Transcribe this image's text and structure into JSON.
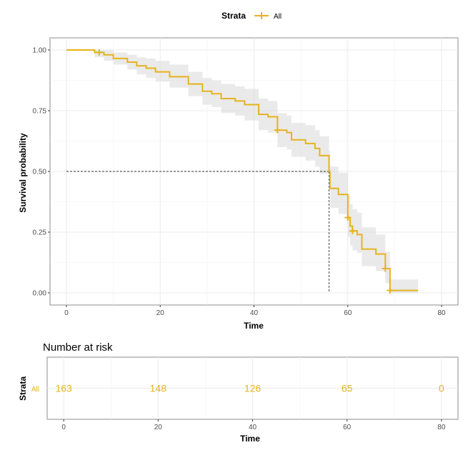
{
  "legend": {
    "title": "Strata",
    "label": "All",
    "placement": "top"
  },
  "colors": {
    "series": "#e6b31e",
    "ci_band": "#d9d9d9",
    "grid": "#ebebeb",
    "panel_border": "#8c8c8c",
    "median_line": "#333333"
  },
  "chart_data": [
    {
      "type": "line",
      "subtype": "kaplan-meier",
      "xlabel": "Time",
      "ylabel": "Survival probability",
      "xlim": [
        -3.5,
        83.5
      ],
      "ylim": [
        -0.05,
        1.05
      ],
      "x_ticks": [
        0,
        20,
        40,
        60,
        80
      ],
      "x_tick_labels": [
        "0",
        "20",
        "40",
        "60",
        "80"
      ],
      "y_ticks": [
        0,
        0.25,
        0.5,
        0.75,
        1
      ],
      "y_tick_labels": [
        "0.00",
        "0.25",
        "0.50",
        "0.75",
        "1.00"
      ],
      "grid": true,
      "series": [
        {
          "name": "All",
          "steps": [
            [
              0,
              1.0
            ],
            [
              6,
              0.99
            ],
            [
              8,
              0.98
            ],
            [
              10,
              0.965
            ],
            [
              13,
              0.95
            ],
            [
              15,
              0.935
            ],
            [
              17,
              0.925
            ],
            [
              19,
              0.91
            ],
            [
              22,
              0.89
            ],
            [
              26,
              0.86
            ],
            [
              29,
              0.83
            ],
            [
              31,
              0.82
            ],
            [
              33,
              0.8
            ],
            [
              36,
              0.79
            ],
            [
              38,
              0.775
            ],
            [
              41,
              0.735
            ],
            [
              43,
              0.725
            ],
            [
              45,
              0.67
            ],
            [
              47,
              0.66
            ],
            [
              48,
              0.63
            ],
            [
              51,
              0.615
            ],
            [
              53,
              0.595
            ],
            [
              54,
              0.565
            ],
            [
              56,
              0.5
            ],
            [
              56.2,
              0.43
            ],
            [
              58,
              0.405
            ],
            [
              60,
              0.31
            ],
            [
              60.5,
              0.275
            ],
            [
              61,
              0.255
            ],
            [
              62,
              0.24
            ],
            [
              63,
              0.18
            ],
            [
              66,
              0.16
            ],
            [
              68,
              0.1
            ],
            [
              69,
              0.01
            ],
            [
              75,
              0.01
            ]
          ],
          "ci_upper": [
            [
              0,
              1.0
            ],
            [
              6,
              1.0
            ],
            [
              8,
              1.0
            ],
            [
              10,
              0.99
            ],
            [
              13,
              0.98
            ],
            [
              15,
              0.97
            ],
            [
              17,
              0.965
            ],
            [
              19,
              0.955
            ],
            [
              22,
              0.94
            ],
            [
              26,
              0.91
            ],
            [
              29,
              0.885
            ],
            [
              31,
              0.875
            ],
            [
              33,
              0.86
            ],
            [
              36,
              0.85
            ],
            [
              38,
              0.84
            ],
            [
              41,
              0.8
            ],
            [
              43,
              0.79
            ],
            [
              45,
              0.74
            ],
            [
              47,
              0.73
            ],
            [
              48,
              0.7
            ],
            [
              51,
              0.69
            ],
            [
              53,
              0.67
            ],
            [
              54,
              0.645
            ],
            [
              56,
              0.585
            ],
            [
              56.2,
              0.52
            ],
            [
              58,
              0.495
            ],
            [
              60,
              0.4
            ],
            [
              60.5,
              0.365
            ],
            [
              61,
              0.345
            ],
            [
              62,
              0.33
            ],
            [
              63,
              0.27
            ],
            [
              66,
              0.24
            ],
            [
              68,
              0.17
            ],
            [
              69,
              0.055
            ],
            [
              75,
              0.055
            ]
          ],
          "ci_lower": [
            [
              0,
              1.0
            ],
            [
              6,
              0.97
            ],
            [
              8,
              0.955
            ],
            [
              10,
              0.94
            ],
            [
              13,
              0.92
            ],
            [
              15,
              0.9
            ],
            [
              17,
              0.885
            ],
            [
              19,
              0.87
            ],
            [
              22,
              0.845
            ],
            [
              26,
              0.81
            ],
            [
              29,
              0.775
            ],
            [
              31,
              0.765
            ],
            [
              33,
              0.74
            ],
            [
              36,
              0.73
            ],
            [
              38,
              0.71
            ],
            [
              41,
              0.67
            ],
            [
              43,
              0.66
            ],
            [
              45,
              0.6
            ],
            [
              47,
              0.59
            ],
            [
              48,
              0.56
            ],
            [
              51,
              0.545
            ],
            [
              53,
              0.52
            ],
            [
              54,
              0.49
            ],
            [
              56,
              0.42
            ],
            [
              56.2,
              0.35
            ],
            [
              58,
              0.325
            ],
            [
              60,
              0.23
            ],
            [
              60.5,
              0.195
            ],
            [
              61,
              0.175
            ],
            [
              62,
              0.165
            ],
            [
              63,
              0.11
            ],
            [
              66,
              0.09
            ],
            [
              68,
              0.04
            ],
            [
              69,
              0.0
            ],
            [
              75,
              0.0
            ]
          ],
          "censor_times": [
            7,
            45,
            60,
            61,
            68,
            69
          ]
        }
      ],
      "median": {
        "time": 56,
        "survival": 0.5
      }
    },
    {
      "type": "table",
      "title": "Number at risk",
      "xlabel": "Time",
      "ylabel": "Strata",
      "row_label": "All",
      "xlim": [
        -3.5,
        83.5
      ],
      "x_ticks": [
        0,
        20,
        40,
        60,
        80
      ],
      "x_tick_labels": [
        "0",
        "20",
        "40",
        "60",
        "80"
      ],
      "times": [
        0,
        20,
        40,
        60,
        80
      ],
      "counts": [
        "163",
        "148",
        "126",
        "65",
        "0"
      ]
    }
  ]
}
